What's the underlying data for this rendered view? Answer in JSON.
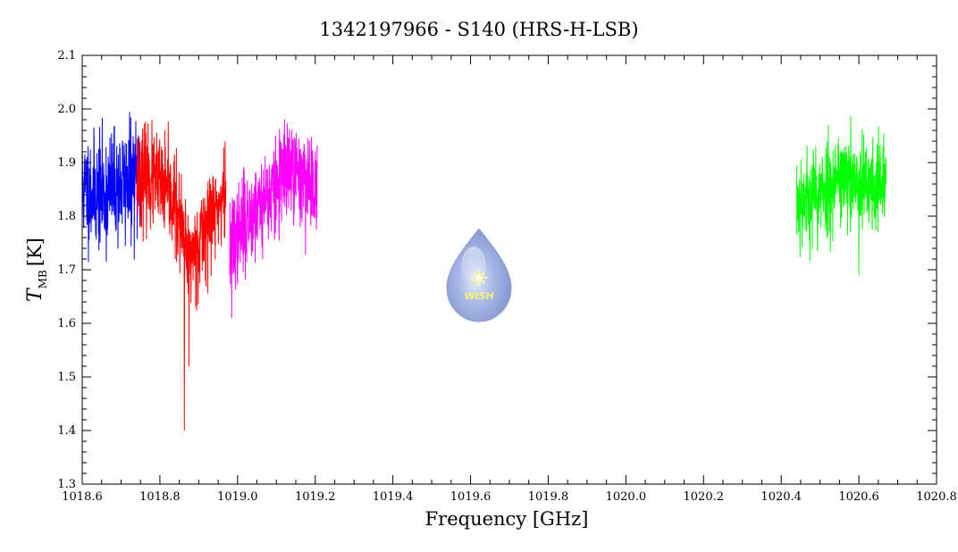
{
  "chart_data": {
    "type": "line",
    "title": "1342197966 - S140 (HRS-H-LSB)",
    "xlabel": "Frequency [GHz]",
    "ylabel_main": "T",
    "ylabel_sub": "MB",
    "ylabel_unit": "[K]",
    "xlim": [
      1018.6,
      1020.8
    ],
    "ylim": [
      1.3,
      2.1
    ],
    "xticks": [
      "1018.6",
      "1018.8",
      "1019.0",
      "1019.2",
      "1019.4",
      "1019.6",
      "1019.8",
      "1020.0",
      "1020.2",
      "1020.4",
      "1020.6",
      "1020.8"
    ],
    "xtick_values": [
      1018.6,
      1018.8,
      1019.0,
      1019.2,
      1019.4,
      1019.6,
      1019.8,
      1020.0,
      1020.2,
      1020.4,
      1020.6,
      1020.8
    ],
    "yticks": [
      "1.3",
      "1.4",
      "1.5",
      "1.6",
      "1.7",
      "1.8",
      "1.9",
      "2.0",
      "2.1"
    ],
    "ytick_values": [
      1.3,
      1.4,
      1.5,
      1.6,
      1.7,
      1.8,
      1.9,
      2.0,
      2.1
    ],
    "grid": false,
    "series": [
      {
        "color": "#0000ff",
        "x_range": [
          1018.6,
          1018.75
        ],
        "level": [
          [
            1018.6,
            1.85
          ],
          [
            1018.65,
            1.84
          ],
          [
            1018.7,
            1.86
          ],
          [
            1018.75,
            1.87
          ]
        ],
        "noise": 0.07,
        "dips": [],
        "seed": 11
      },
      {
        "color": "#ff0000",
        "x_range": [
          1018.74,
          1018.97
        ],
        "level": [
          [
            1018.74,
            1.88
          ],
          [
            1018.8,
            1.86
          ],
          [
            1018.84,
            1.82
          ],
          [
            1018.87,
            1.72
          ],
          [
            1018.9,
            1.75
          ],
          [
            1018.93,
            1.8
          ],
          [
            1018.97,
            1.84
          ]
        ],
        "noise": 0.06,
        "dips": [
          [
            1018.863,
            1.4
          ],
          [
            1018.875,
            1.52
          ]
        ],
        "seed": 23
      },
      {
        "color": "#ff00ff",
        "x_range": [
          1018.98,
          1019.205
        ],
        "level": [
          [
            1018.98,
            1.74
          ],
          [
            1019.03,
            1.8
          ],
          [
            1019.08,
            1.84
          ],
          [
            1019.13,
            1.88
          ],
          [
            1019.205,
            1.86
          ]
        ],
        "noise": 0.06,
        "dips": [
          [
            1018.985,
            1.61
          ]
        ],
        "seed": 37
      },
      {
        "color": "#00ff00",
        "x_range": [
          1020.44,
          1020.67
        ],
        "level": [
          [
            1020.44,
            1.83
          ],
          [
            1020.5,
            1.84
          ],
          [
            1020.55,
            1.88
          ],
          [
            1020.6,
            1.85
          ],
          [
            1020.67,
            1.86
          ]
        ],
        "noise": 0.06,
        "dips": [
          [
            1020.6,
            1.69
          ]
        ],
        "seed": 53
      }
    ]
  },
  "logo": {
    "text": "WISH"
  }
}
